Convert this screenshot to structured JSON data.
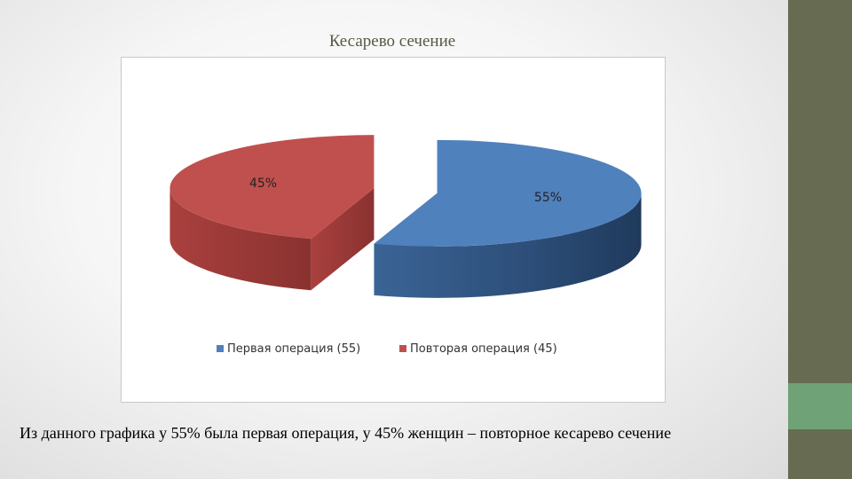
{
  "slide": {
    "title": "Кесарево сечение",
    "caption": "Из данного графика у 55% была первая операция, у 45% женщин – повторное кесарево сечение"
  },
  "chart_data": {
    "type": "pie",
    "title": "",
    "three_d": true,
    "exploded": true,
    "categories": [
      "Первая операция (55)",
      "Повторая операция (45)"
    ],
    "values": [
      55,
      45
    ],
    "data_labels": [
      "55%",
      "45%"
    ],
    "colors": [
      "#4f81bd",
      "#c0504d"
    ],
    "legend_position": "bottom"
  },
  "colors": {
    "side_bar": "#666b52",
    "side_accent": "#6fa377",
    "title_text": "#555a44"
  }
}
